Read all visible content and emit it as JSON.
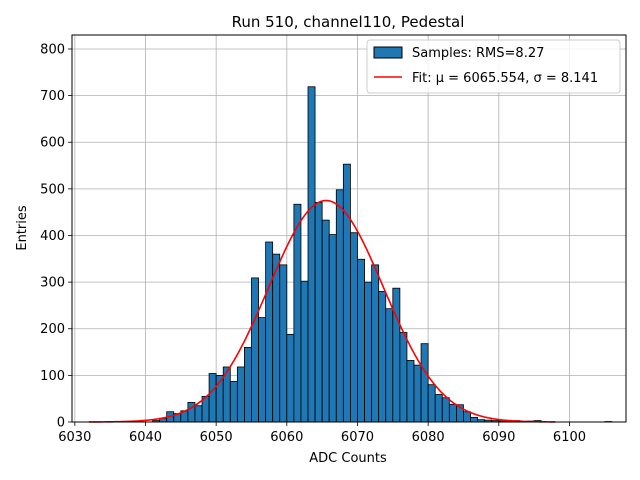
{
  "chart_data": {
    "type": "bar",
    "title": "Run 510, channel110, Pedestal",
    "xlabel": "ADC Counts",
    "ylabel": "Entries",
    "xlim": [
      6029.6,
      6108.0
    ],
    "ylim": [
      0,
      830
    ],
    "xticks": [
      6030,
      6040,
      6050,
      6060,
      6070,
      6080,
      6090,
      6100
    ],
    "yticks": [
      0,
      100,
      200,
      300,
      400,
      500,
      600,
      700,
      800
    ],
    "grid": true,
    "legend_position": "top-right",
    "bin_width": 1,
    "colors": {
      "bars": "#1f77b4",
      "bar_edge": "#000000",
      "fit": "#ff0000",
      "grid": "#b0b0b0"
    },
    "histogram": {
      "name": "Samples: RMS=8.27",
      "bin_left_edges": [
        6032,
        6033,
        6034,
        6035,
        6036,
        6037,
        6038,
        6039,
        6040,
        6041,
        6042,
        6043,
        6044,
        6045,
        6046,
        6047,
        6048,
        6049,
        6050,
        6051,
        6052,
        6053,
        6054,
        6055,
        6056,
        6057,
        6058,
        6059,
        6060,
        6061,
        6062,
        6063,
        6064,
        6065,
        6066,
        6067,
        6068,
        6069,
        6070,
        6071,
        6072,
        6073,
        6074,
        6075,
        6076,
        6077,
        6078,
        6079,
        6080,
        6081,
        6082,
        6083,
        6084,
        6085,
        6086,
        6087,
        6088,
        6089,
        6090,
        6091,
        6092,
        6093,
        6094,
        6095,
        6096,
        6097,
        6098,
        6099,
        6100,
        6101,
        6102,
        6103,
        6104,
        6105,
        6106,
        6107
      ],
      "counts": [
        0,
        0,
        0,
        0,
        0,
        0,
        0,
        0,
        0,
        3,
        8,
        22,
        18,
        24,
        42,
        35,
        55,
        104,
        100,
        118,
        87,
        118,
        160,
        309,
        224,
        386,
        360,
        337,
        188,
        467,
        302,
        719,
        471,
        433,
        402,
        498,
        553,
        406,
        349,
        300,
        337,
        280,
        243,
        287,
        192,
        132,
        122,
        168,
        80,
        59,
        52,
        38,
        37,
        22,
        10,
        5,
        4,
        3,
        2,
        2,
        3,
        1,
        2,
        3,
        0,
        0,
        0,
        0,
        0,
        0,
        0,
        0,
        0,
        1,
        0,
        0
      ]
    },
    "fit": {
      "name": "Fit: μ = 6065.554, σ = 8.141",
      "type": "gaussian",
      "mu": 6065.554,
      "sigma": 8.141,
      "amplitude": 475,
      "x_range": [
        6032,
        6098
      ]
    }
  }
}
